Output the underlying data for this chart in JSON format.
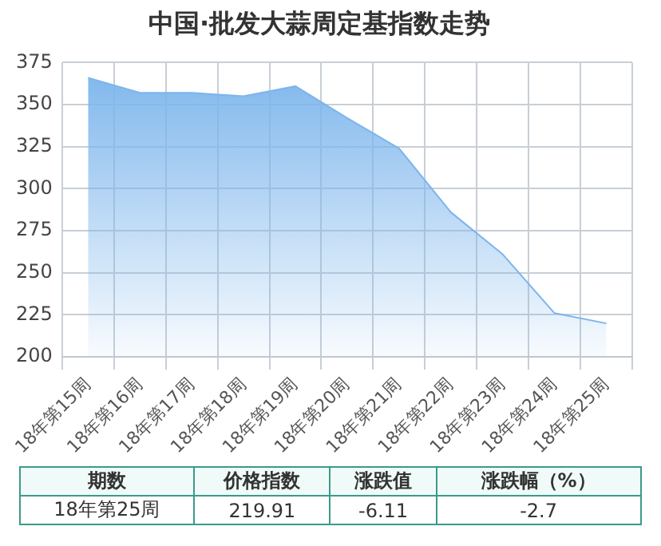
{
  "chart_data": {
    "type": "area",
    "title": "中国·批发大蒜周定基指数走势",
    "categories": [
      "18年第15周",
      "18年第16周",
      "18年第17周",
      "18年第18周",
      "18年第19周",
      "18年第20周",
      "18年第21周",
      "18年第22周",
      "18年第23周",
      "18年第24周",
      "18年第25周"
    ],
    "series": [
      {
        "color": "#7cb5ec",
        "values": [
          366,
          357,
          357,
          355,
          361,
          342,
          324,
          286,
          261,
          226,
          219.91
        ]
      }
    ],
    "ylim": [
      200,
      375
    ],
    "yticks": [
      200,
      225,
      250,
      275,
      300,
      325,
      350,
      375
    ],
    "grid": true,
    "legend": false,
    "marker": "none",
    "annotations": [
      "期数",
      "价格指数",
      "涨跌值",
      "涨跌幅（%）",
      "18年第25周",
      "219.91",
      "-6.11",
      "-2.7"
    ]
  }
}
